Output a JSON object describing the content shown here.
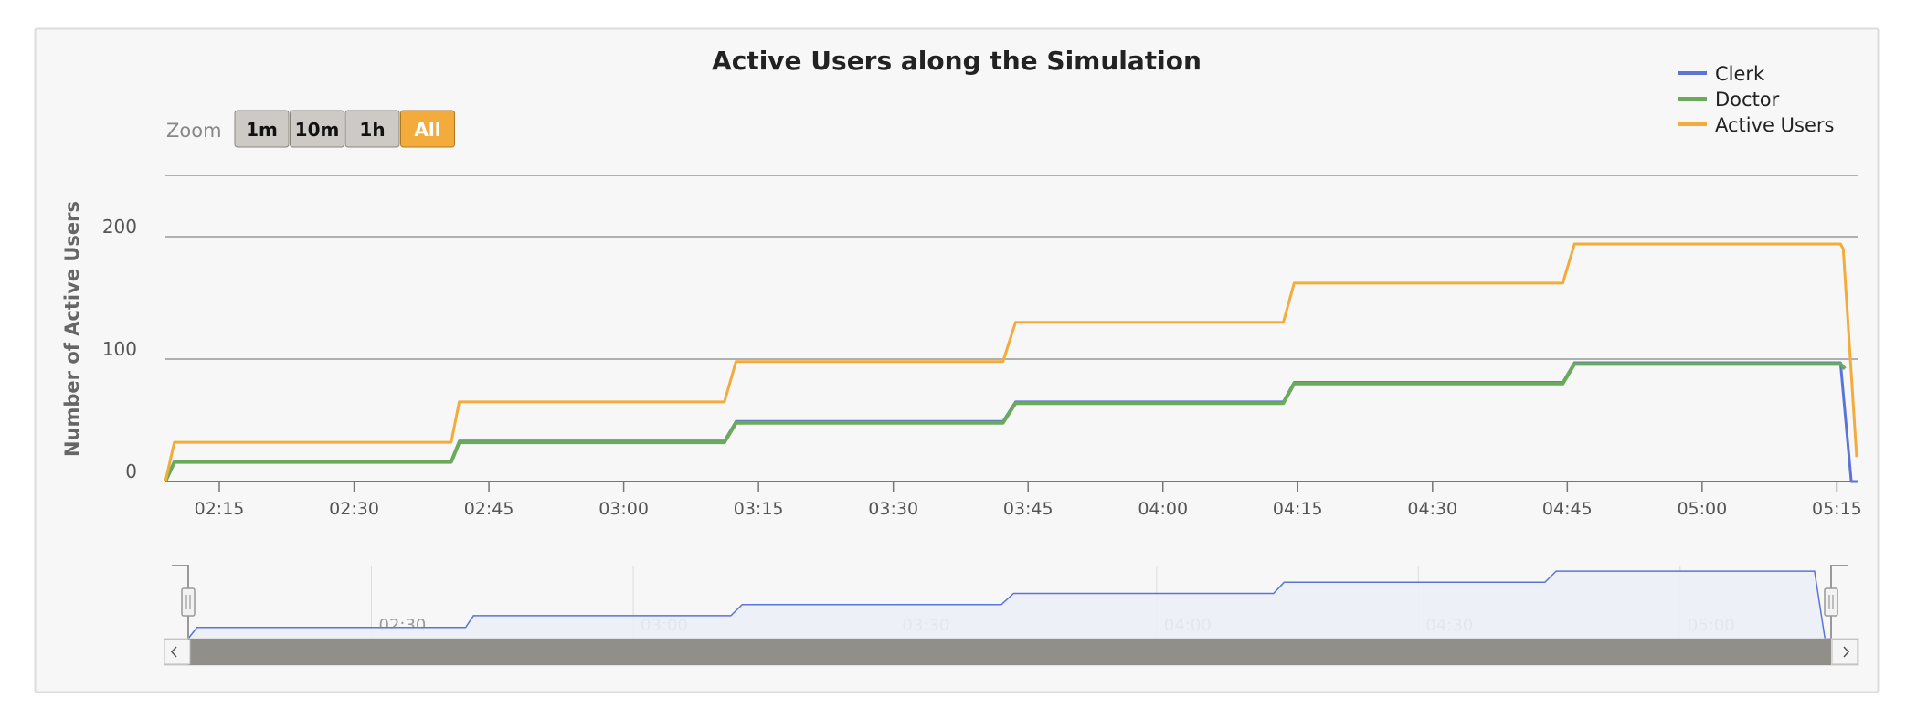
{
  "chart_data": {
    "type": "line",
    "title": "Active Users along the Simulation",
    "ylabel": "Number of Active Users",
    "xlabel": "",
    "x_type": "time",
    "xlim": [
      "02:09",
      "05:17.3"
    ],
    "ylim": [
      0,
      250
    ],
    "y_ticks": [
      "0",
      "100",
      "200"
    ],
    "x_ticks": [
      "02:15",
      "02:30",
      "02:45",
      "03:00",
      "03:15",
      "03:30",
      "03:45",
      "04:00",
      "04:15",
      "04:30",
      "04:45",
      "05:00",
      "05:15"
    ],
    "grid": true,
    "legend_placement": "top-right",
    "series": [
      {
        "name": "Clerk",
        "color": "#5b74d8",
        "points": [
          [
            "02:09",
            0
          ],
          [
            "02:10",
            16
          ],
          [
            "02:40.8",
            16
          ],
          [
            "02:41.7",
            33
          ],
          [
            "03:11.2",
            33
          ],
          [
            "03:12.5",
            49
          ],
          [
            "03:42.2",
            49
          ],
          [
            "03:43.6",
            65
          ],
          [
            "04:13.4",
            65
          ],
          [
            "04:14.6",
            81
          ],
          [
            "04:44.5",
            81
          ],
          [
            "04:45.8",
            97
          ],
          [
            "05:15.4",
            97
          ],
          [
            "05:16.6",
            0
          ],
          [
            "05:17.3",
            0
          ]
        ]
      },
      {
        "name": "Doctor",
        "color": "#6aaa5a",
        "points": [
          [
            "02:09",
            0
          ],
          [
            "02:10",
            16
          ],
          [
            "02:40.8",
            16
          ],
          [
            "02:41.7",
            32
          ],
          [
            "03:11.2",
            32
          ],
          [
            "03:12.5",
            48
          ],
          [
            "03:42.2",
            48
          ],
          [
            "03:43.6",
            64
          ],
          [
            "04:13.4",
            64
          ],
          [
            "04:14.6",
            80
          ],
          [
            "04:44.5",
            80
          ],
          [
            "04:45.8",
            96
          ],
          [
            "05:15.4",
            96
          ],
          [
            "05:15.9",
            92
          ]
        ]
      },
      {
        "name": "Active Users",
        "color": "#f3ac3c",
        "points": [
          [
            "02:09",
            0
          ],
          [
            "02:10",
            32
          ],
          [
            "02:40.8",
            32
          ],
          [
            "02:41.7",
            65
          ],
          [
            "03:11.2",
            65
          ],
          [
            "03:12.5",
            98
          ],
          [
            "03:42.2",
            98
          ],
          [
            "03:43.6",
            130
          ],
          [
            "04:13.4",
            130
          ],
          [
            "04:14.6",
            162
          ],
          [
            "04:44.5",
            162
          ],
          [
            "04:45.8",
            194
          ],
          [
            "05:15.4",
            194
          ],
          [
            "05:15.7",
            190
          ],
          [
            "05:17.2",
            20
          ]
        ]
      }
    ]
  },
  "range_selector": {
    "label": "Zoom",
    "buttons": [
      "1m",
      "10m",
      "1h",
      "All"
    ],
    "selected": "All"
  },
  "navigator": {
    "series": "Clerk",
    "x_ticks": [
      "02:30",
      "03:00",
      "03:30",
      "04:00",
      "04:30",
      "05:00"
    ]
  },
  "colors": {
    "background": "#f7f7f7",
    "navigator_fill": "#eceef6",
    "scrollbar": "#908f8a"
  }
}
